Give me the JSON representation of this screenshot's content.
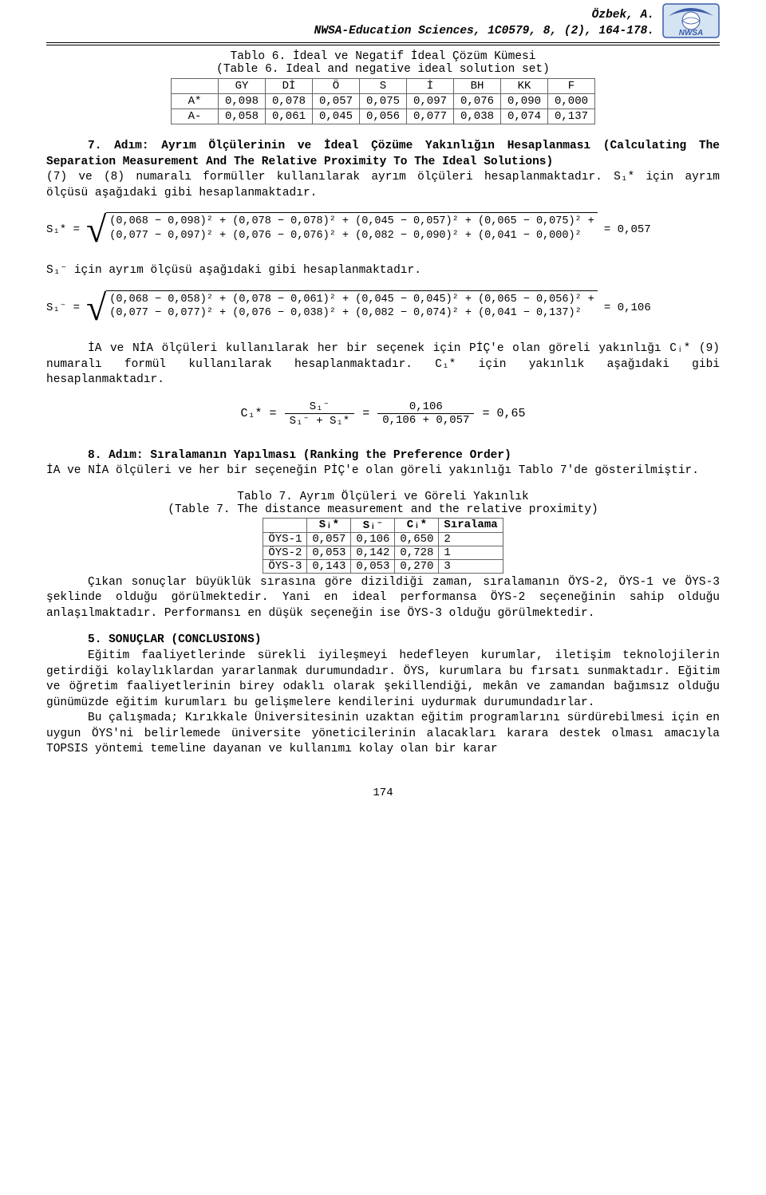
{
  "header": {
    "author": "Özbek, A.",
    "journal": "NWSA-Education Sciences, 1C0579, 8, (2), 164-178.",
    "logo_text": "NWSA",
    "logo_bg": "#3b5ca6",
    "logo_fg": "#ffffff",
    "logo_accent": "#d5e4f3"
  },
  "table6": {
    "caption_tr": "Tablo 6. İdeal ve Negatif İdeal Çözüm Kümesi",
    "caption_en": "(Table 6. Ideal and negative ideal solution set)",
    "columns": [
      "",
      "GY",
      "Dİ",
      "Ö",
      "S",
      "İ",
      "BH",
      "KK",
      "F"
    ],
    "rows": [
      [
        "A*",
        "0,098",
        "0,078",
        "0,057",
        "0,075",
        "0,097",
        "0,076",
        "0,090",
        "0,000"
      ],
      [
        "A-",
        "0,058",
        "0,061",
        "0,045",
        "0,056",
        "0,077",
        "0,038",
        "0,074",
        "0,137"
      ]
    ]
  },
  "step7": {
    "title_tr": "7. Adım: Ayrım Ölçülerinin ve İdeal Çözüme Yakınlığın Hesaplanması ",
    "title_en": "(Calculating The Separation Measurement And The Relative Proximity To The Ideal Solutions)",
    "body": "(7) ve (8) numaralı formüller kullanılarak ayrım ölçüleri hesaplanmaktadır.   S₁*   için   ayrım   ölçüsü   aşağıdaki   gibi hesaplanmaktadır.",
    "s1star_label": "S₁* =",
    "s1star_line1": "(0,068 − 0,098)² + (0,078 − 0,078)² + (0,045 − 0,057)² + (0,065 − 0,075)² +",
    "s1star_line2": "(0,077 − 0,097)² + (0,076 − 0,076)² + (0,082 − 0,090)² + (0,041 − 0,000)²",
    "s1star_result": "= 0,057",
    "s1minus_caption": "S₁⁻ için ayrım ölçüsü aşağıdaki gibi hesaplanmaktadır.",
    "s1minus_label": "S₁⁻ =",
    "s1minus_line1": "(0,068 − 0,058)² + (0,078 − 0,061)² + (0,045 − 0,045)² + (0,065 − 0,056)² +",
    "s1minus_line2": "(0,077 − 0,077)² + (0,076 − 0,038)² + (0,082 − 0,074)² + (0,041 − 0,137)²",
    "s1minus_result": "= 0,106",
    "cpara": "İA ve NİA ölçüleri kullanılarak her bir seçenek için PİÇ'e olan göreli yakınlığı Cᵢ* (9) numaralı formül kullanılarak hesaplanmaktadır. C₁* için yakınlık aşağıdaki gibi hesaplanmaktadır.",
    "c1_label": "C₁* =",
    "c1_num1": "S₁⁻",
    "c1_den1": "S₁⁻ + S₁*",
    "c1_eq": "=",
    "c1_num2": "0,106",
    "c1_den2": "0,106 + 0,057",
    "c1_result": "= 0,65"
  },
  "step8": {
    "title": "8. Adım: Sıralamanın Yapılması (Ranking the Preference Order)",
    "body": "İA  ve  NİA  ölçüleri  ve  her  bir  seçeneğin  PİÇ'e  olan  göreli yakınlığı Tablo 7'de gösterilmiştir."
  },
  "table7": {
    "caption_tr": "Tablo 7. Ayrım Ölçüleri ve Göreli Yakınlık",
    "caption_en": "(Table 7. The distance measurement and the relative proximity)",
    "columns": [
      "",
      "Sᵢ*",
      "Sᵢ⁻",
      "Cᵢ*",
      "Sıralama"
    ],
    "rows": [
      [
        "ÖYS-1",
        "0,057",
        "0,106",
        "0,650",
        "2"
      ],
      [
        "ÖYS-2",
        "0,053",
        "0,142",
        "0,728",
        "1"
      ],
      [
        "ÖYS-3",
        "0,143",
        "0,053",
        "0,270",
        "3"
      ]
    ]
  },
  "results": {
    "p1": "Çıkan   sonuçlar   büyüklük   sırasına   göre   dizildiği   zaman, sıralamanın ÖYS-2, ÖYS-1 ve ÖYS-3 şeklinde olduğu görülmektedir. Yani en ideal performansa ÖYS-2 seçeneğinin sahip olduğu anlaşılmaktadır. Performansı en düşük seçeneğin ise ÖYS-3 olduğu görülmektedir."
  },
  "conclusions": {
    "title": "5. SONUÇLAR (CONCLUSIONS)",
    "p1": "Eğitim faaliyetlerinde sürekli iyileşmeyi hedefleyen kurumlar, iletişim   teknolojilerin   getirdiği   kolaylıklardan   yararlanmak durumundadır.   ÖYS, kurumlara bu fırsatı sunmaktadır. Eğitim ve öğretim faaliyetlerinin birey odaklı olarak şekillendiği, mekân ve zamandan bağımsız olduğu günümüzde eğitim kurumları bu gelişmelere kendilerini uydurmak durumundadırlar.",
    "p2": "Bu   çalışmada;   Kırıkkale   Üniversitesinin   uzaktan   eğitim programlarını  sürdürebilmesi  için  en  uygun  ÖYS'ni  belirlemede üniversite yöneticilerinin alacakları karara destek olması amacıyla TOPSIS yöntemi temeline dayanan ve kullanımı kolay olan bir karar"
  },
  "page_number": "174"
}
